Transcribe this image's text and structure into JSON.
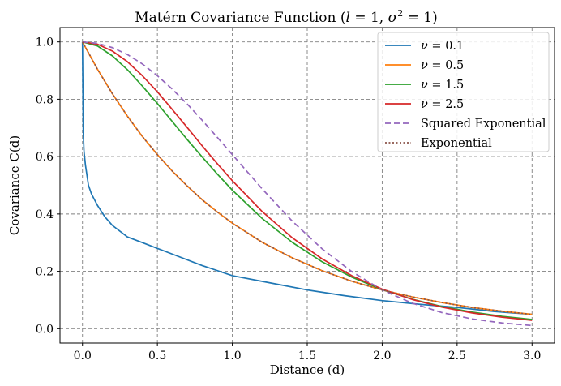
{
  "chart_data": {
    "type": "line",
    "title": "Matérn Covariance Function (l = 1, σ² = 1)",
    "title_parts": {
      "prefix": "Matérn Covariance Function (",
      "l_sym": "l",
      "l_eq": " = 1, ",
      "sigma_sym": "σ",
      "sigma_exp": "2",
      "sigma_eq": " = 1)"
    },
    "xlabel": "Distance (d)",
    "ylabel": "Covariance C(d)",
    "xlim": [
      -0.15,
      3.15
    ],
    "ylim": [
      -0.05,
      1.05
    ],
    "xticks": [
      0.0,
      0.5,
      1.0,
      1.5,
      2.0,
      2.5,
      3.0
    ],
    "xtick_labels": [
      "0.0",
      "0.5",
      "1.0",
      "1.5",
      "2.0",
      "2.5",
      "3.0"
    ],
    "yticks": [
      0.0,
      0.2,
      0.4,
      0.6,
      0.8,
      1.0
    ],
    "ytick_labels": [
      "0.0",
      "0.2",
      "0.4",
      "0.6",
      "0.8",
      "1.0"
    ],
    "grid": true,
    "legend_position": "top-right",
    "series": [
      {
        "name": "ν = 0.1",
        "legend_sym": "ν",
        "legend_val": " = 0.1",
        "color": "#1f77b4",
        "dash": "solid",
        "x": [
          0,
          0.005,
          0.01,
          0.02,
          0.04,
          0.06,
          0.1,
          0.15,
          0.2,
          0.3,
          0.4,
          0.5,
          0.6,
          0.8,
          1.0,
          1.25,
          1.5,
          1.75,
          2.0,
          2.25,
          2.5,
          2.75,
          3.0
        ],
        "y": [
          1.0,
          0.69,
          0.62,
          0.57,
          0.5,
          0.47,
          0.43,
          0.39,
          0.36,
          0.32,
          0.3,
          0.28,
          0.26,
          0.22,
          0.185,
          0.16,
          0.135,
          0.115,
          0.098,
          0.085,
          0.074,
          0.06,
          0.05
        ]
      },
      {
        "name": "ν = 0.5",
        "legend_sym": "ν",
        "legend_val": " = 0.5",
        "color": "#ff7f0e",
        "dash": "solid",
        "x": [
          0,
          0.1,
          0.2,
          0.3,
          0.4,
          0.5,
          0.6,
          0.7,
          0.8,
          0.9,
          1.0,
          1.2,
          1.4,
          1.6,
          1.8,
          2.0,
          2.2,
          2.4,
          2.6,
          2.8,
          3.0
        ],
        "y": [
          1.0,
          0.905,
          0.819,
          0.741,
          0.67,
          0.607,
          0.549,
          0.497,
          0.449,
          0.407,
          0.368,
          0.301,
          0.247,
          0.202,
          0.165,
          0.135,
          0.111,
          0.091,
          0.074,
          0.061,
          0.05
        ]
      },
      {
        "name": "ν = 1.5",
        "legend_sym": "ν",
        "legend_val": " = 1.5",
        "color": "#2ca02c",
        "dash": "solid",
        "x": [
          0,
          0.1,
          0.2,
          0.3,
          0.4,
          0.5,
          0.6,
          0.7,
          0.8,
          0.9,
          1.0,
          1.2,
          1.4,
          1.6,
          1.8,
          2.0,
          2.2,
          2.4,
          2.6,
          2.8,
          3.0
        ],
        "y": [
          1.0,
          0.986,
          0.951,
          0.903,
          0.846,
          0.785,
          0.722,
          0.659,
          0.598,
          0.539,
          0.483,
          0.384,
          0.301,
          0.233,
          0.179,
          0.136,
          0.103,
          0.077,
          0.058,
          0.043,
          0.032
        ]
      },
      {
        "name": "ν = 2.5",
        "legend_sym": "ν",
        "legend_val": " = 2.5",
        "color": "#d62728",
        "dash": "solid",
        "x": [
          0,
          0.1,
          0.2,
          0.3,
          0.4,
          0.5,
          0.6,
          0.7,
          0.8,
          0.9,
          1.0,
          1.2,
          1.4,
          1.6,
          1.8,
          2.0,
          2.2,
          2.4,
          2.6,
          2.8,
          3.0
        ],
        "y": [
          1.0,
          0.992,
          0.968,
          0.931,
          0.882,
          0.826,
          0.764,
          0.701,
          0.637,
          0.575,
          0.516,
          0.408,
          0.317,
          0.243,
          0.184,
          0.138,
          0.102,
          0.075,
          0.055,
          0.04,
          0.029
        ]
      },
      {
        "name": "Squared Exponential",
        "color": "#9467bd",
        "dash": "dashed",
        "x": [
          0,
          0.1,
          0.2,
          0.3,
          0.4,
          0.5,
          0.6,
          0.7,
          0.8,
          0.9,
          1.0,
          1.2,
          1.4,
          1.6,
          1.8,
          2.0,
          2.2,
          2.4,
          2.6,
          2.8,
          3.0
        ],
        "y": [
          1.0,
          0.995,
          0.98,
          0.956,
          0.923,
          0.882,
          0.835,
          0.783,
          0.726,
          0.667,
          0.607,
          0.487,
          0.375,
          0.278,
          0.198,
          0.135,
          0.089,
          0.056,
          0.034,
          0.02,
          0.011
        ]
      },
      {
        "name": "Exponential",
        "color": "#8c564b",
        "dash": "dotted",
        "x": [
          0,
          0.1,
          0.2,
          0.3,
          0.4,
          0.5,
          0.6,
          0.7,
          0.8,
          0.9,
          1.0,
          1.2,
          1.4,
          1.6,
          1.8,
          2.0,
          2.2,
          2.4,
          2.6,
          2.8,
          3.0
        ],
        "y": [
          1.0,
          0.905,
          0.819,
          0.741,
          0.67,
          0.607,
          0.549,
          0.497,
          0.449,
          0.407,
          0.368,
          0.301,
          0.247,
          0.202,
          0.165,
          0.135,
          0.111,
          0.091,
          0.074,
          0.061,
          0.05
        ]
      }
    ]
  }
}
